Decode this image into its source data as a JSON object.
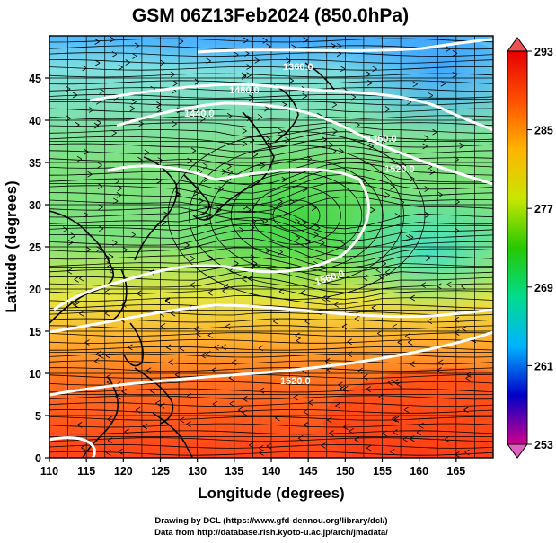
{
  "title": "GSM 06Z13Feb2024 (850.0hPa)",
  "x_axis": {
    "label": "Longitude (degrees)",
    "ticks": [
      "110",
      "115",
      "120",
      "125",
      "130",
      "135",
      "140",
      "145",
      "150",
      "155",
      "160",
      "165"
    ],
    "range": [
      110,
      170
    ]
  },
  "y_axis": {
    "label": "Latitude  (degrees)",
    "ticks": [
      "0",
      "5",
      "10",
      "15",
      "20",
      "25",
      "30",
      "35",
      "40",
      "45"
    ],
    "range": [
      0,
      50
    ]
  },
  "colorbar": {
    "ticks": [
      "293",
      "285",
      "277",
      "269",
      "261",
      "253"
    ],
    "range": [
      253,
      293
    ],
    "colors": [
      "#d0008c",
      "#0000c8",
      "#00b4ff",
      "#00dc8c",
      "#28c800",
      "#c8e600",
      "#ffb400",
      "#ff5000",
      "#e60000"
    ]
  },
  "contour_labels": [
    "1360.0",
    "1480.0",
    "1440.0",
    "1360.0",
    "1520.0",
    "1560.0",
    "1520.0"
  ],
  "credits": [
    "Drawing by DCL (https://www.gfd-dennou.org/library/dcl/)",
    "Data from http://database.rish.kyoto-u.ac.jp/arch/jmadata/"
  ],
  "chart_data": {
    "type": "heatmap",
    "title": "GSM 06Z13Feb2024 (850.0hPa)",
    "xlabel": "Longitude (degrees)",
    "ylabel": "Latitude  (degrees)",
    "xlim": [
      110,
      170
    ],
    "ylim": [
      0,
      50
    ],
    "color_range": [
      253,
      293
    ],
    "overlays": [
      "streamlines",
      "geopotential height contours (white)",
      "coastlines"
    ],
    "contour_levels": [
      1360.0,
      1440.0,
      1480.0,
      1520.0,
      1560.0
    ],
    "grid": true
  }
}
